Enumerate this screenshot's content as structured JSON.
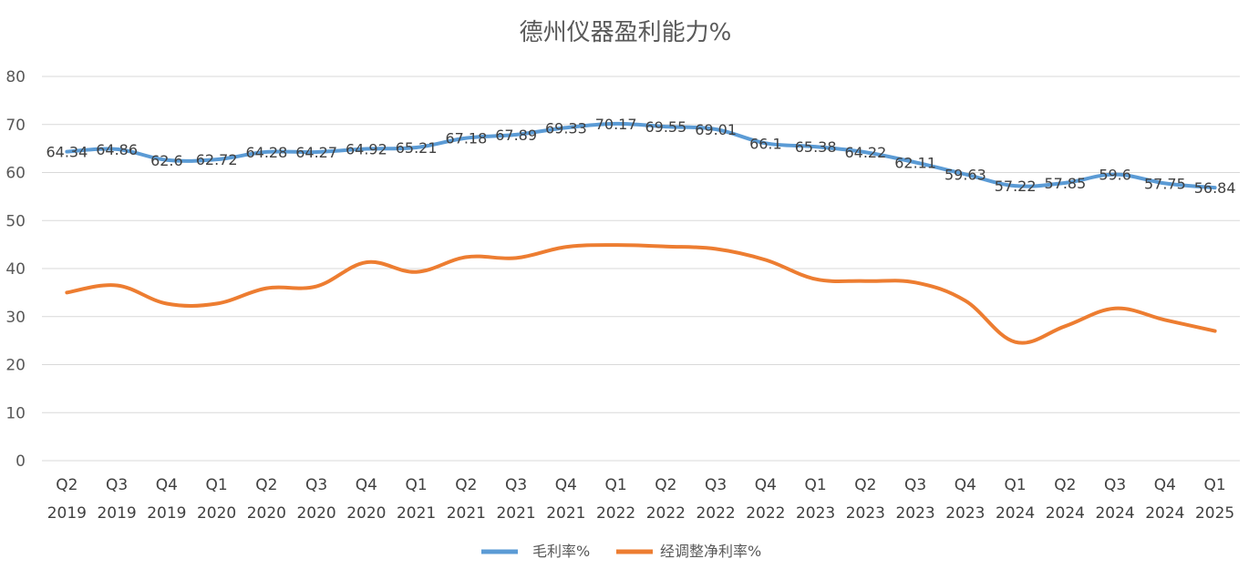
{
  "chart_data": {
    "type": "line",
    "title": "德州仪器盈利能力%",
    "xlabel": "",
    "ylabel": "",
    "ylim": [
      0,
      80
    ],
    "yticks": [
      0,
      10,
      20,
      30,
      40,
      50,
      60,
      70,
      80
    ],
    "grid": true,
    "legend_position": "bottom",
    "categories": [
      [
        "Q2",
        "2019"
      ],
      [
        "Q3",
        "2019"
      ],
      [
        "Q4",
        "2019"
      ],
      [
        "Q1",
        "2020"
      ],
      [
        "Q2",
        "2020"
      ],
      [
        "Q3",
        "2020"
      ],
      [
        "Q4",
        "2020"
      ],
      [
        "Q1",
        "2021"
      ],
      [
        "Q2",
        "2021"
      ],
      [
        "Q3",
        "2021"
      ],
      [
        "Q4",
        "2021"
      ],
      [
        "Q1",
        "2022"
      ],
      [
        "Q2",
        "2022"
      ],
      [
        "Q3",
        "2022"
      ],
      [
        "Q4",
        "2022"
      ],
      [
        "Q1",
        "2023"
      ],
      [
        "Q2",
        "2023"
      ],
      [
        "Q3",
        "2023"
      ],
      [
        "Q4",
        "2023"
      ],
      [
        "Q1",
        "2024"
      ],
      [
        "Q2",
        "2024"
      ],
      [
        "Q3",
        "2024"
      ],
      [
        "Q4",
        "2024"
      ],
      [
        "Q1",
        "2025"
      ]
    ],
    "series": [
      {
        "name": "毛利率%",
        "color": "#5b9bd5",
        "show_labels": true,
        "values": [
          64.34,
          64.86,
          62.6,
          62.72,
          64.28,
          64.27,
          64.92,
          65.21,
          67.18,
          67.89,
          69.33,
          70.17,
          69.55,
          69.01,
          66.1,
          65.38,
          64.22,
          62.11,
          59.63,
          57.22,
          57.85,
          59.6,
          57.75,
          56.84
        ]
      },
      {
        "name": "经调整净利率%",
        "color": "#ed7d31",
        "show_labels": false,
        "values": [
          35.0,
          36.5,
          32.7,
          32.7,
          35.9,
          36.3,
          41.3,
          39.3,
          42.4,
          42.2,
          44.5,
          44.9,
          44.6,
          44.1,
          41.8,
          37.8,
          37.4,
          37.1,
          33.3,
          24.7,
          28.0,
          31.7,
          29.3,
          27.0
        ]
      }
    ]
  }
}
